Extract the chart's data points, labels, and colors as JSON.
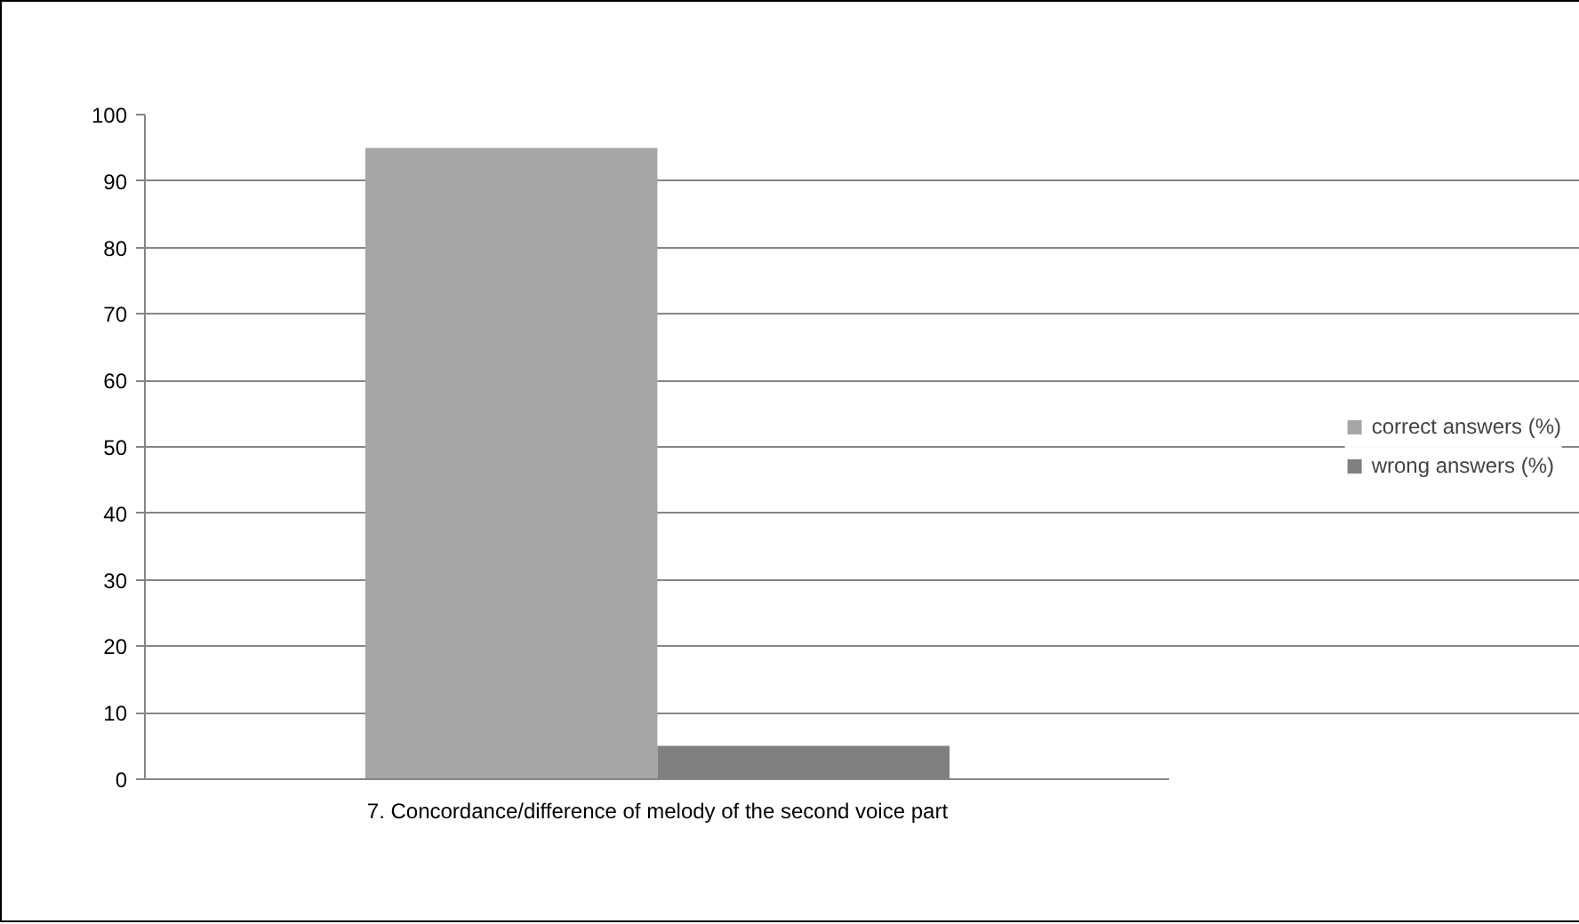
{
  "chart_data": {
    "type": "bar",
    "categories": [
      "7. Concordance/difference of melody of the second voice part"
    ],
    "series": [
      {
        "name": "correct answers (%)",
        "color": "#a6a6a6",
        "values": [
          95
        ]
      },
      {
        "name": "wrong answers (%)",
        "color": "#808080",
        "values": [
          5
        ]
      }
    ],
    "ylim": [
      0,
      100
    ],
    "yticks": [
      0,
      10,
      20,
      30,
      40,
      50,
      60,
      70,
      80,
      90,
      100
    ],
    "grid": "y",
    "legend": "right"
  }
}
